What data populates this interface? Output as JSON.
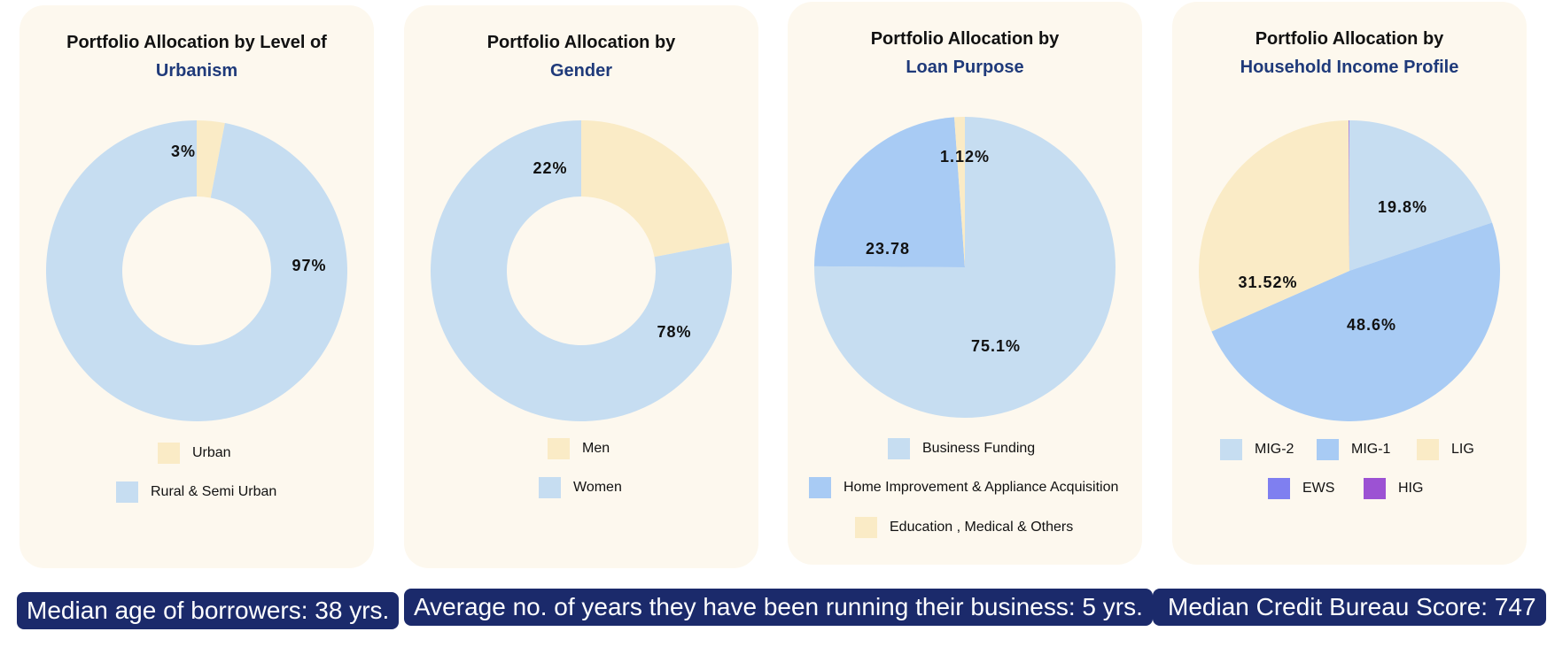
{
  "colors": {
    "urban": "#faebc6",
    "rural": "#c6ddf1",
    "men": "#faebc6",
    "women": "#c6ddf1",
    "business": "#c6ddf1",
    "home": "#a8cbf4",
    "education": "#faebc6",
    "mig2": "#c6ddf1",
    "mig1": "#a8cbf4",
    "lig": "#faebc6",
    "ews": "#7f7ff0",
    "hig": "#9c52d3",
    "stat_bg": "#1b2a6b",
    "title_accent": "#1f3a7a"
  },
  "chart_data": [
    {
      "type": "pie",
      "donut": true,
      "title": "Portfolio Allocation by Level of",
      "title_highlight": "Urbanism",
      "legend_position": "bottom",
      "slices": [
        {
          "label": "Urban",
          "value": 3,
          "display": "3%",
          "color": "#faebc6"
        },
        {
          "label": "Rural & Semi Urban",
          "value": 97,
          "display": "97%",
          "color": "#c6ddf1"
        }
      ]
    },
    {
      "type": "pie",
      "donut": true,
      "title": "Portfolio Allocation by",
      "title_highlight": "Gender",
      "legend_position": "bottom",
      "slices": [
        {
          "label": "Men",
          "value": 22,
          "display": "22%",
          "color": "#faebc6"
        },
        {
          "label": "Women",
          "value": 78,
          "display": "78%",
          "color": "#c6ddf1"
        }
      ]
    },
    {
      "type": "pie",
      "donut": false,
      "title": "Portfolio Allocation by",
      "title_highlight": "Loan Purpose",
      "legend_position": "bottom",
      "slices": [
        {
          "label": "Business Funding",
          "value": 75.1,
          "display": "75.1%",
          "color": "#c6ddf1"
        },
        {
          "label": "Home Improvement & Appliance Acquisition",
          "value": 23.78,
          "display": "23.78",
          "color": "#a8cbf4"
        },
        {
          "label": "Education , Medical & Others",
          "value": 1.12,
          "display": "1.12%",
          "color": "#faebc6"
        }
      ]
    },
    {
      "type": "pie",
      "donut": false,
      "title": "Portfolio Allocation by",
      "title_highlight": "Household Income Profile",
      "legend_position": "bottom",
      "slices": [
        {
          "label": "MIG-2",
          "value": 19.8,
          "display": "19.8%",
          "color": "#c6ddf1"
        },
        {
          "label": "MIG-1",
          "value": 48.6,
          "display": "48.6%",
          "color": "#a8cbf4"
        },
        {
          "label": "LIG",
          "value": 31.52,
          "display": "31.52%",
          "color": "#faebc6"
        },
        {
          "label": "EWS",
          "value": 0.04,
          "display": "",
          "color": "#7f7ff0"
        },
        {
          "label": "HIG",
          "value": 0.04,
          "display": "",
          "color": "#9c52d3"
        }
      ]
    }
  ],
  "stats": {
    "median_age": "Median age of borrowers: 38 yrs.",
    "business_years": "Average no. of years they have been running their business: 5 yrs.",
    "credit_score": "Median Credit Bureau Score: 747"
  }
}
